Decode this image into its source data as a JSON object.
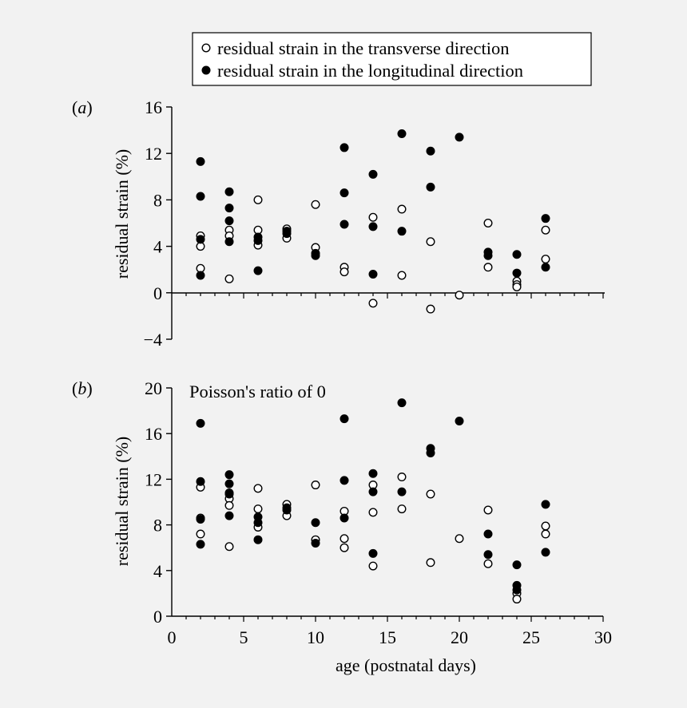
{
  "legend": {
    "items": [
      {
        "label": "residual strain in the transverse direction",
        "marker": "open-circle"
      },
      {
        "label": "residual strain in the longitudinal direction",
        "marker": "filled-circle"
      }
    ]
  },
  "colors": {
    "background": "#f2f2f2",
    "ink": "#000000"
  },
  "chart_data": [
    {
      "type": "scatter",
      "panel_label": "(a)",
      "panel_letter": "a",
      "title": "",
      "xlabel": "",
      "ylabel": "residual strain (%)",
      "xlim": [
        0,
        30
      ],
      "ylim": [
        -4,
        16
      ],
      "yticks": [
        -4,
        0,
        4,
        8,
        12,
        16
      ],
      "ytick_labels": [
        "−4",
        "0",
        "4",
        "8",
        "12",
        "16"
      ],
      "grid": false,
      "zero_axis": true,
      "series": [
        {
          "name": "residual strain in the transverse direction",
          "marker": "open",
          "points": [
            [
              2,
              4.9
            ],
            [
              2,
              4.0
            ],
            [
              2,
              2.1
            ],
            [
              4,
              5.4
            ],
            [
              4,
              4.9
            ],
            [
              4,
              1.2
            ],
            [
              6,
              8.0
            ],
            [
              6,
              5.4
            ],
            [
              6,
              4.1
            ],
            [
              8,
              5.5
            ],
            [
              8,
              4.7
            ],
            [
              10,
              7.6
            ],
            [
              10,
              3.9
            ],
            [
              12,
              2.2
            ],
            [
              12,
              1.8
            ],
            [
              14,
              6.5
            ],
            [
              14,
              -0.9
            ],
            [
              16,
              7.2
            ],
            [
              16,
              1.5
            ],
            [
              18,
              4.4
            ],
            [
              18,
              -1.4
            ],
            [
              20,
              -0.2
            ],
            [
              22,
              6.0
            ],
            [
              22,
              2.2
            ],
            [
              24,
              1.0
            ],
            [
              24,
              0.7
            ],
            [
              24,
              0.5
            ],
            [
              26,
              5.4
            ],
            [
              26,
              2.9
            ]
          ]
        },
        {
          "name": "residual strain in the longitudinal direction",
          "marker": "filled",
          "points": [
            [
              2,
              11.3
            ],
            [
              2,
              8.3
            ],
            [
              2,
              4.6
            ],
            [
              2,
              1.5
            ],
            [
              4,
              8.7
            ],
            [
              4,
              7.3
            ],
            [
              4,
              6.2
            ],
            [
              4,
              4.4
            ],
            [
              6,
              4.8
            ],
            [
              6,
              4.5
            ],
            [
              6,
              1.9
            ],
            [
              8,
              5.3
            ],
            [
              8,
              5.1
            ],
            [
              10,
              3.4
            ],
            [
              10,
              3.2
            ],
            [
              12,
              12.5
            ],
            [
              12,
              8.6
            ],
            [
              12,
              5.9
            ],
            [
              14,
              10.2
            ],
            [
              14,
              5.7
            ],
            [
              14,
              1.6
            ],
            [
              16,
              13.7
            ],
            [
              16,
              5.3
            ],
            [
              18,
              12.2
            ],
            [
              18,
              9.1
            ],
            [
              20,
              13.4
            ],
            [
              22,
              3.5
            ],
            [
              22,
              3.2
            ],
            [
              24,
              3.3
            ],
            [
              24,
              1.7
            ],
            [
              26,
              6.4
            ],
            [
              26,
              2.2
            ]
          ]
        }
      ]
    },
    {
      "type": "scatter",
      "panel_label": "(b)",
      "panel_letter": "b",
      "title": "Poisson's ratio of 0",
      "xlabel": "age (postnatal days)",
      "ylabel": "residual strain (%)",
      "xlim": [
        0,
        30
      ],
      "ylim": [
        0,
        20
      ],
      "xticks": [
        0,
        5,
        10,
        15,
        20,
        25,
        30
      ],
      "yticks": [
        0,
        4,
        8,
        12,
        16,
        20
      ],
      "ytick_labels": [
        "0",
        "4",
        "8",
        "12",
        "16",
        "20"
      ],
      "grid": false,
      "series": [
        {
          "name": "residual strain in the transverse direction",
          "marker": "open",
          "points": [
            [
              2,
              11.3
            ],
            [
              2,
              8.6
            ],
            [
              2,
              7.2
            ],
            [
              4,
              10.8
            ],
            [
              4,
              10.3
            ],
            [
              4,
              9.7
            ],
            [
              4,
              6.1
            ],
            [
              6,
              11.2
            ],
            [
              6,
              9.4
            ],
            [
              6,
              7.8
            ],
            [
              8,
              9.8
            ],
            [
              8,
              8.8
            ],
            [
              10,
              11.5
            ],
            [
              10,
              6.7
            ],
            [
              12,
              9.2
            ],
            [
              12,
              6.8
            ],
            [
              12,
              6.0
            ],
            [
              14,
              11.5
            ],
            [
              14,
              9.1
            ],
            [
              14,
              4.4
            ],
            [
              16,
              12.2
            ],
            [
              16,
              9.4
            ],
            [
              18,
              10.7
            ],
            [
              18,
              4.7
            ],
            [
              20,
              6.8
            ],
            [
              22,
              9.3
            ],
            [
              22,
              4.6
            ],
            [
              24,
              2.0
            ],
            [
              24,
              1.5
            ],
            [
              26,
              7.9
            ],
            [
              26,
              7.2
            ]
          ]
        },
        {
          "name": "residual strain in the longitudinal direction",
          "marker": "filled",
          "points": [
            [
              2,
              16.9
            ],
            [
              2,
              11.8
            ],
            [
              2,
              8.5
            ],
            [
              2,
              6.3
            ],
            [
              4,
              12.4
            ],
            [
              4,
              11.6
            ],
            [
              4,
              10.7
            ],
            [
              4,
              8.8
            ],
            [
              6,
              8.7
            ],
            [
              6,
              8.2
            ],
            [
              6,
              6.7
            ],
            [
              8,
              9.5
            ],
            [
              8,
              9.3
            ],
            [
              10,
              8.2
            ],
            [
              10,
              6.4
            ],
            [
              12,
              17.3
            ],
            [
              12,
              11.9
            ],
            [
              12,
              8.6
            ],
            [
              14,
              12.5
            ],
            [
              14,
              10.9
            ],
            [
              14,
              5.5
            ],
            [
              16,
              18.7
            ],
            [
              16,
              10.9
            ],
            [
              18,
              14.7
            ],
            [
              18,
              14.3
            ],
            [
              20,
              17.1
            ],
            [
              22,
              7.2
            ],
            [
              22,
              5.4
            ],
            [
              24,
              4.5
            ],
            [
              24,
              2.7
            ],
            [
              24,
              2.3
            ],
            [
              26,
              9.8
            ],
            [
              26,
              5.6
            ]
          ]
        }
      ]
    }
  ]
}
